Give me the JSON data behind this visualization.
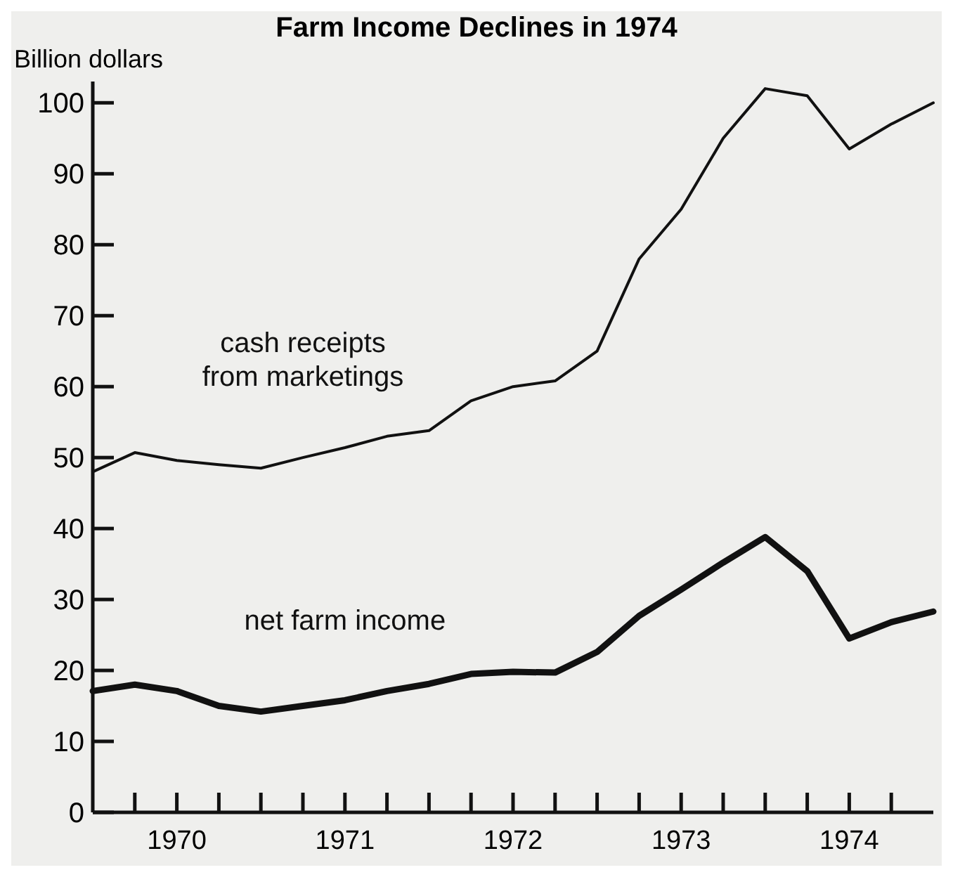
{
  "chart_data": {
    "type": "line",
    "title": "Farm Income Declines in 1974",
    "ylabel": "Billion dollars",
    "x": [
      1970,
      1970.25,
      1970.5,
      1970.75,
      1971,
      1971.25,
      1971.5,
      1971.75,
      1972,
      1972.25,
      1972.5,
      1972.75,
      1973,
      1973.25,
      1973.5,
      1973.75,
      1974,
      1974.25,
      1974.5,
      1974.75,
      1975
    ],
    "xlim": [
      1970,
      1975
    ],
    "xticks": [
      {
        "value": 1970.25,
        "label": null
      },
      {
        "value": 1970.5,
        "label": "1970"
      },
      {
        "value": 1970.75,
        "label": null
      },
      {
        "value": 1971,
        "label": null
      },
      {
        "value": 1971.25,
        "label": null
      },
      {
        "value": 1971.5,
        "label": "1971"
      },
      {
        "value": 1971.75,
        "label": null
      },
      {
        "value": 1972,
        "label": null
      },
      {
        "value": 1972.25,
        "label": null
      },
      {
        "value": 1972.5,
        "label": "1972"
      },
      {
        "value": 1972.75,
        "label": null
      },
      {
        "value": 1973,
        "label": null
      },
      {
        "value": 1973.25,
        "label": null
      },
      {
        "value": 1973.5,
        "label": "1973"
      },
      {
        "value": 1973.75,
        "label": null
      },
      {
        "value": 1974,
        "label": null
      },
      {
        "value": 1974.25,
        "label": null
      },
      {
        "value": 1974.5,
        "label": "1974"
      },
      {
        "value": 1974.75,
        "label": null
      }
    ],
    "ylim": [
      0,
      103
    ],
    "yticks": [
      0,
      10,
      20,
      30,
      40,
      50,
      60,
      70,
      80,
      90,
      100
    ],
    "series": [
      {
        "name": "cash receipts from marketings",
        "color": "#111111",
        "values": [
          48,
          50.7,
          49.6,
          49,
          48.5,
          50,
          51.4,
          53,
          53.8,
          58,
          60,
          60.8,
          65,
          78,
          85,
          95,
          102,
          101,
          93.5,
          97,
          100
        ]
      },
      {
        "name": "net farm income",
        "color": "#111111",
        "values": [
          17.1,
          18,
          17.1,
          15,
          14.2,
          15,
          15.8,
          17.1,
          18.1,
          19.5,
          19.8,
          19.7,
          22.6,
          27.7,
          31.4,
          35.2,
          38.8,
          34,
          24.5,
          26.8,
          28.3
        ]
      }
    ],
    "grid": false,
    "marker": "none",
    "line_style": "solid"
  }
}
